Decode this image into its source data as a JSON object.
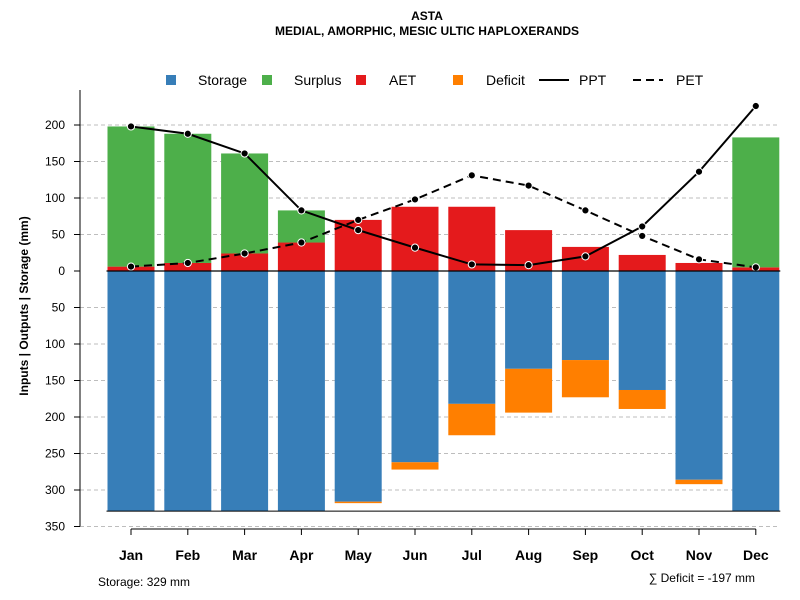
{
  "chart_data": {
    "type": "bar",
    "title": "ASTA",
    "subtitle": "MEDIAL, AMORPHIC, MESIC ULTIC HAPLOXERANDS",
    "ylabel": "Inputs | Outputs | Storage    (mm)",
    "ylim": [
      -350,
      230
    ],
    "yticks": [
      200,
      150,
      100,
      50,
      0,
      -50,
      -100,
      -150,
      -200,
      -250,
      -300,
      -350
    ],
    "ytick_labels": [
      "200",
      "150",
      "100",
      "50",
      "0",
      "50",
      "100",
      "150",
      "200",
      "250",
      "300",
      "350"
    ],
    "categories": [
      "Jan",
      "Feb",
      "Mar",
      "Apr",
      "May",
      "Jun",
      "Jul",
      "Aug",
      "Sep",
      "Oct",
      "Nov",
      "Dec"
    ],
    "series": [
      {
        "name": "Storage",
        "color": "#377EB8",
        "values": [
          -329,
          -329,
          -329,
          -329,
          -316,
          -262,
          -182,
          -134,
          -122,
          -163,
          -286,
          -329
        ]
      },
      {
        "name": "Surplus",
        "color": "#4DAF4A",
        "values": [
          192,
          177,
          137,
          44,
          0,
          0,
          0,
          0,
          0,
          0,
          0,
          178
        ]
      },
      {
        "name": "AET",
        "color": "#E41A1C",
        "values": [
          6,
          11,
          24,
          39,
          70,
          88,
          88,
          56,
          33,
          22,
          11,
          5
        ]
      },
      {
        "name": "Deficit",
        "color": "#FF7F00",
        "values": [
          0,
          0,
          0,
          0,
          -2,
          -10,
          -43,
          -60,
          -51,
          -26,
          -6,
          0
        ]
      },
      {
        "name": "PPT",
        "style": "solid",
        "values": [
          198,
          188,
          161,
          83,
          56,
          32,
          9,
          8,
          20,
          61,
          136,
          226
        ]
      },
      {
        "name": "PET",
        "style": "dashed",
        "values": [
          6,
          11,
          24,
          39,
          70,
          98,
          131,
          117,
          83,
          48,
          16,
          5
        ]
      }
    ],
    "legend": [
      "Storage",
      "Surplus",
      "AET",
      "Deficit",
      "PPT",
      "PET"
    ],
    "legend_position": "top",
    "grid": true,
    "storage_label": "Storage: 329 mm",
    "deficit_label": "∑ Deficit = -197 mm"
  }
}
